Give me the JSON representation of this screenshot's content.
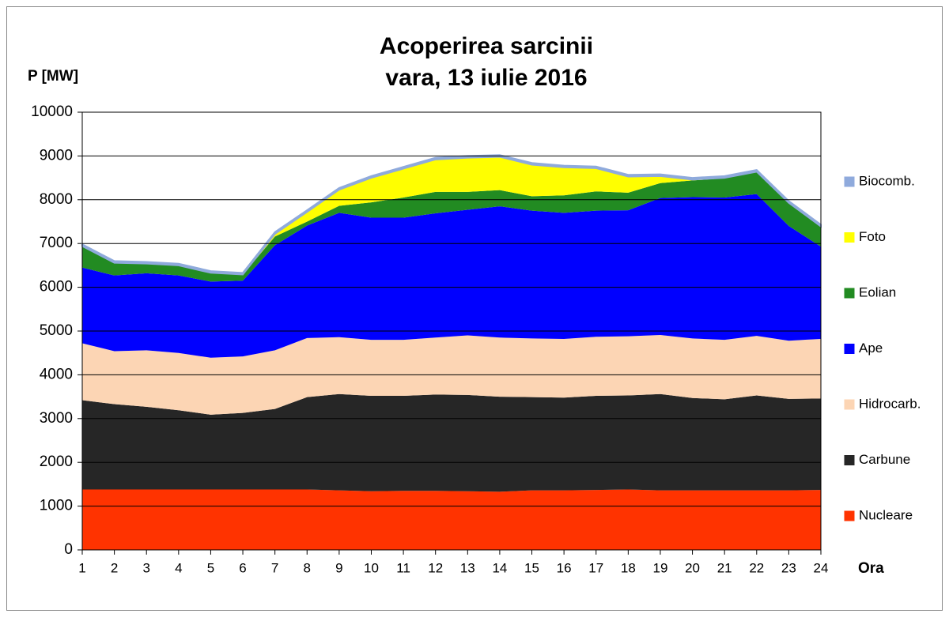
{
  "chart_data": {
    "type": "stacked_area",
    "title": [
      "Acoperirea sarcinii",
      "vara, 13 iulie 2016"
    ],
    "y_label": "P [MW]",
    "x_label": "Ora",
    "x": [
      1,
      2,
      3,
      4,
      5,
      6,
      7,
      8,
      9,
      10,
      11,
      12,
      13,
      14,
      15,
      16,
      17,
      18,
      19,
      20,
      21,
      22,
      23,
      24
    ],
    "xlim": [
      1,
      24
    ],
    "ylim": [
      0,
      10000
    ],
    "yticks": [
      0,
      1000,
      2000,
      3000,
      4000,
      5000,
      6000,
      7000,
      8000,
      9000,
      10000
    ],
    "grid": true,
    "legend": "right",
    "series": [
      {
        "name": "Nucleare",
        "color": "#ff3300",
        "values": [
          1380,
          1380,
          1380,
          1380,
          1380,
          1380,
          1380,
          1380,
          1360,
          1340,
          1350,
          1350,
          1340,
          1330,
          1360,
          1360,
          1370,
          1380,
          1360,
          1360,
          1360,
          1360,
          1360,
          1370
        ]
      },
      {
        "name": "Carbune",
        "color": "#262626",
        "values": [
          2040,
          1950,
          1890,
          1810,
          1710,
          1750,
          1840,
          2110,
          2200,
          2180,
          2170,
          2200,
          2200,
          2170,
          2130,
          2120,
          2150,
          2150,
          2200,
          2110,
          2080,
          2170,
          2090,
          2090
        ]
      },
      {
        "name": "Hidrocarb.",
        "color": "#fcd5b4",
        "values": [
          1300,
          1210,
          1290,
          1310,
          1300,
          1290,
          1340,
          1350,
          1300,
          1280,
          1280,
          1300,
          1360,
          1350,
          1340,
          1340,
          1350,
          1350,
          1350,
          1360,
          1360,
          1360,
          1330,
          1360
        ]
      },
      {
        "name": "Ape",
        "color": "#0000ff",
        "values": [
          1730,
          1730,
          1760,
          1770,
          1740,
          1730,
          2400,
          2570,
          2840,
          2790,
          2790,
          2840,
          2870,
          3000,
          2920,
          2880,
          2880,
          2880,
          3130,
          3230,
          3250,
          3240,
          2620,
          2110
        ]
      },
      {
        "name": "Eolian",
        "color": "#228b22",
        "values": [
          490,
          290,
          220,
          230,
          200,
          140,
          200,
          90,
          160,
          350,
          460,
          490,
          410,
          370,
          330,
          400,
          440,
          400,
          340,
          380,
          440,
          500,
          530,
          460
        ]
      },
      {
        "name": "Foto",
        "color": "#ffff00",
        "values": [
          0,
          0,
          0,
          0,
          0,
          0,
          60,
          220,
          370,
          560,
          660,
          740,
          780,
          760,
          720,
          640,
          530,
          370,
          160,
          20,
          10,
          10,
          0,
          0
        ]
      },
      {
        "name": "Biocomb.",
        "color": "#8faadc",
        "values": [
          40,
          40,
          40,
          40,
          40,
          40,
          40,
          40,
          40,
          40,
          40,
          40,
          40,
          40,
          40,
          40,
          40,
          40,
          40,
          40,
          40,
          40,
          40,
          40
        ]
      }
    ]
  }
}
